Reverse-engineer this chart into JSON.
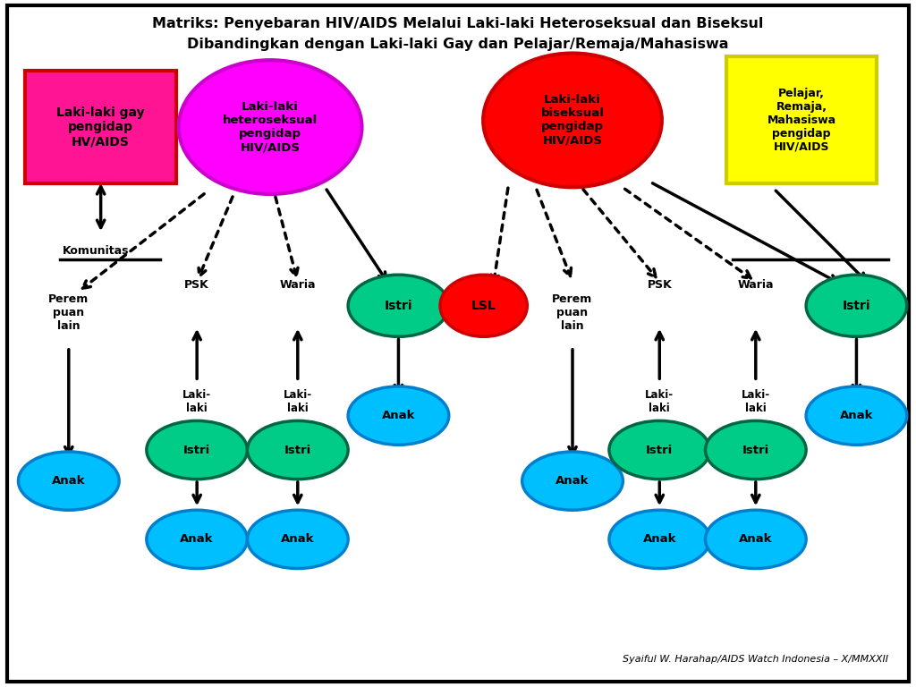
{
  "title_line1": "Matriks: Penyebaran HIV/AIDS Melalui Laki-laki Heteroseksual dan Biseksul",
  "title_line2": "Dibandingkan dengan Laki-laki Gay dan Pelajar/Remaja/Mahasiswa",
  "bg_color": "#FFFFFF",
  "footer": "Syaiful W. Harahap/AIDS Watch Indonesia – X/MMXXII",
  "colors": {
    "gay_box": "#FF1493",
    "gay_edge": "#CC0000",
    "hetero_circle": "#FF00FF",
    "hetero_edge": "#CC00CC",
    "biseks_circle": "#FF0000",
    "biseks_edge": "#CC0000",
    "pelajar_box": "#FFFF00",
    "pelajar_edge": "#CCCC00",
    "istri": "#00CC88",
    "istri_edge": "#006644",
    "lsl": "#FF0000",
    "lsl_edge": "#CC0000",
    "anak": "#00BFFF",
    "anak_edge": "#0080CC"
  }
}
